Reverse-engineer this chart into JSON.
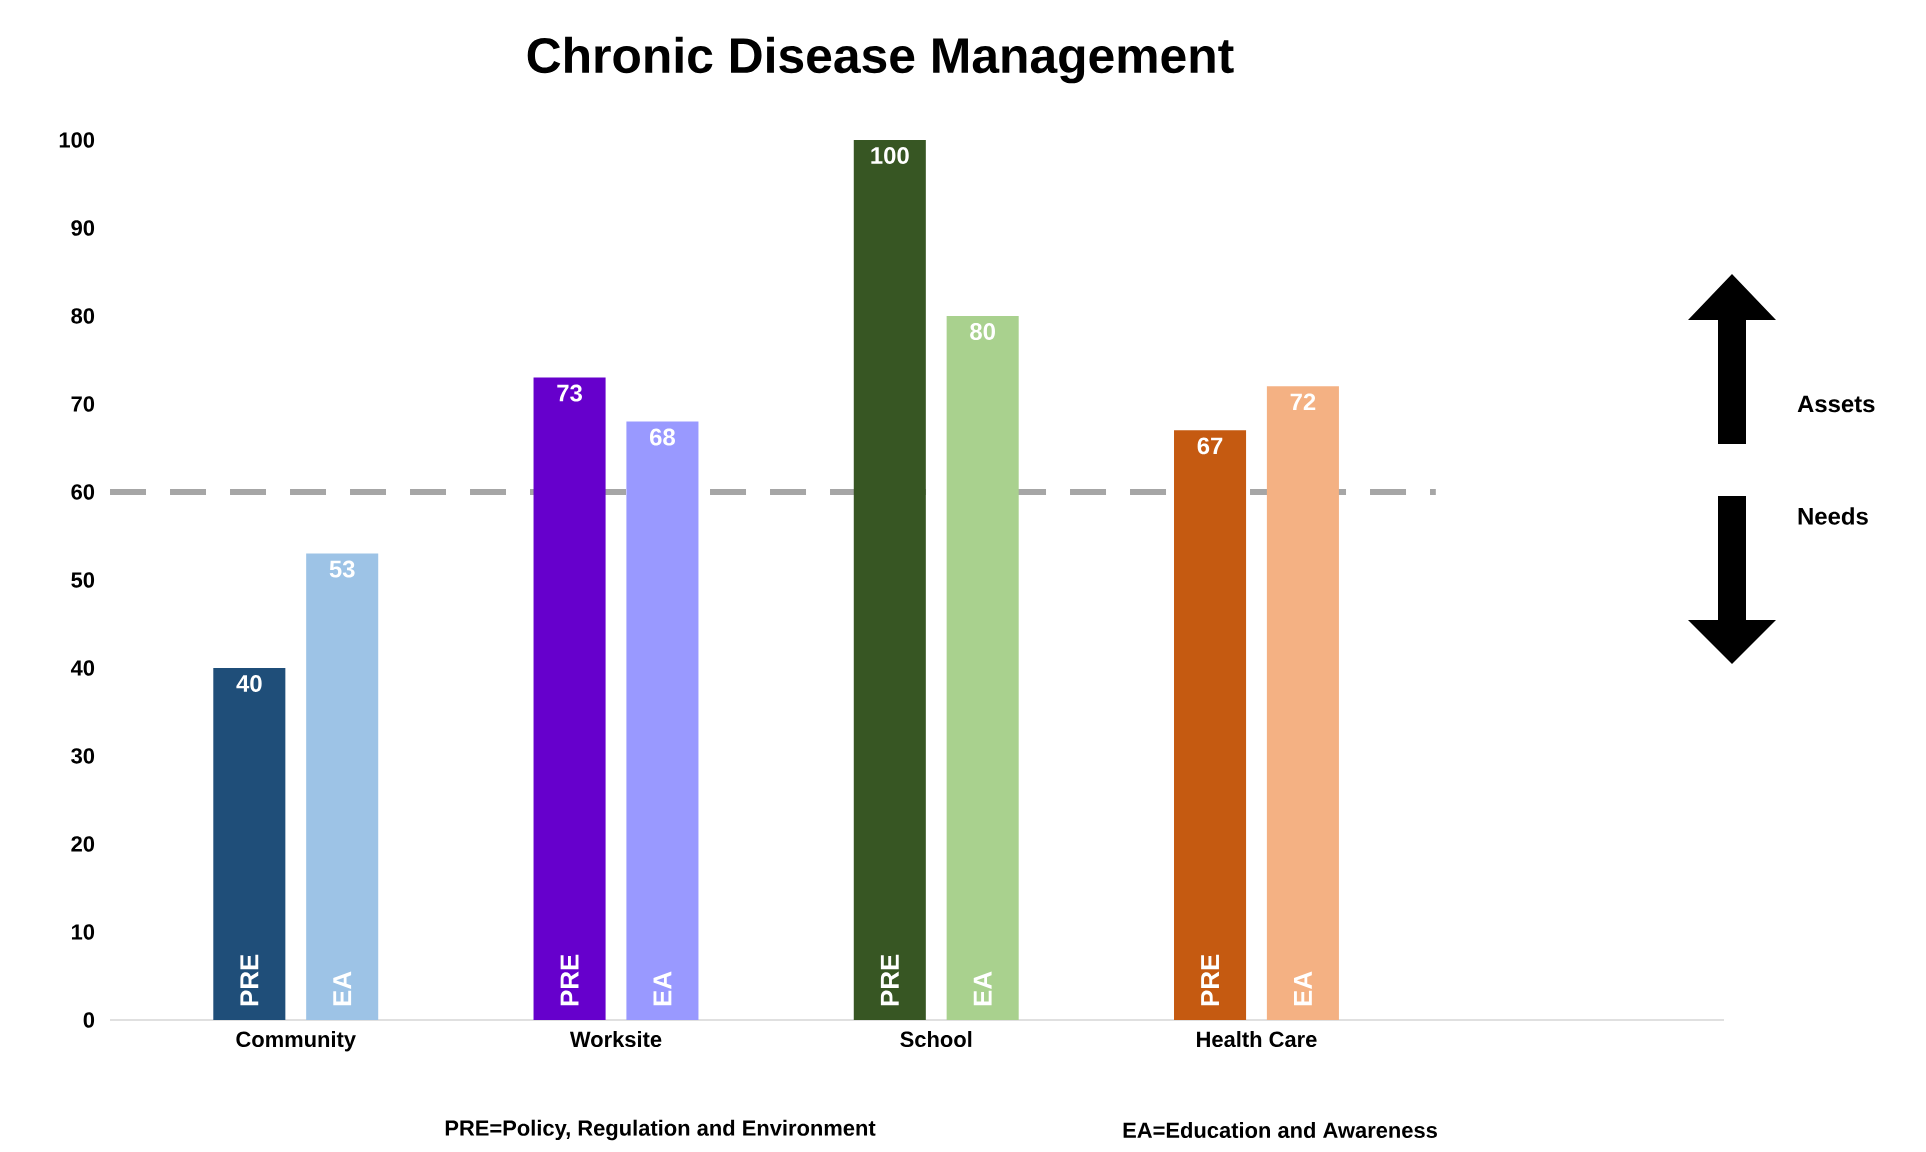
{
  "chart_data": {
    "type": "bar",
    "title": "Chronic Disease Management",
    "categories": [
      "Community",
      "Worksite",
      "School",
      "Health Care"
    ],
    "series": [
      {
        "name": "PRE",
        "values": [
          40,
          73,
          100,
          67
        ],
        "colors": [
          "#1f4e79",
          "#6600cc",
          "#375623",
          "#c55a11"
        ]
      },
      {
        "name": "EA",
        "values": [
          53,
          68,
          80,
          72
        ],
        "colors": [
          "#9dc3e6",
          "#9999ff",
          "#a9d18e",
          "#f4b183"
        ]
      }
    ],
    "ylim": [
      0,
      100
    ],
    "yticks": [
      0,
      10,
      20,
      30,
      40,
      50,
      60,
      70,
      80,
      90,
      100
    ],
    "data_labels": true,
    "legend": false,
    "grid": false,
    "ref_lines": [
      {
        "axis": "y",
        "value": 60,
        "color": "#a6a6a6",
        "line_style": "dashed"
      }
    ],
    "annotations": [
      "Assets",
      "Needs",
      "PRE=Policy, Regulation and Environment",
      "EA=Education and Awareness"
    ]
  }
}
